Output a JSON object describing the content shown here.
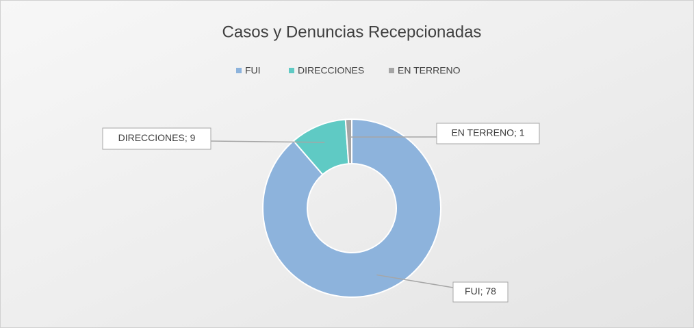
{
  "chart_data": {
    "type": "donut",
    "title": "Casos y Denuncias Recepcionadas",
    "categories": [
      "FUI",
      "DIRECCIONES",
      "EN TERRENO"
    ],
    "values": [
      78,
      9,
      1
    ],
    "value_labels": [
      "FUI; 78",
      "DIRECCIONES; 9",
      "EN TERRENO; 1"
    ],
    "colors": [
      "#8db3dc",
      "#5fcac4",
      "#a5a5a5"
    ],
    "legend": "top"
  }
}
